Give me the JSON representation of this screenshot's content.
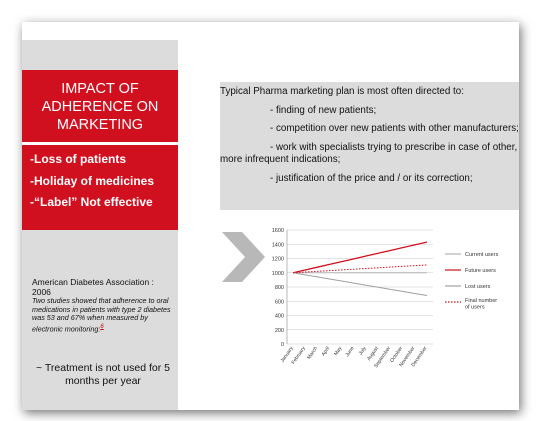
{
  "left_panel": {
    "title": "IMPACT OF ADHERENCE ON MARKETING",
    "bullets": [
      "-Loss of patients",
      "-Holiday of medicines",
      "-“Label” Not effective"
    ],
    "citation": {
      "source": "American Diabetes Association : 2006",
      "text": "Two studies showed that adherence to oral medications in patients with type 2 diabetes was 53 and 67% when measured by electronic monitoring:",
      "ref": "6"
    },
    "note": "~ Treatment is not used for 5 months per year"
  },
  "plan": {
    "intro": "Typical Pharma marketing plan is most often directed to:",
    "items": [
      "- finding of new patients;",
      "- competition over new patients with other manufacturers;",
      "- work with specialists trying to prescribe in case of other, more infrequent indications;",
      "- justification of the price and / or its correction;"
    ]
  },
  "chart_data": {
    "type": "line",
    "categories": [
      "January",
      "February",
      "March",
      "April",
      "May",
      "June",
      "July",
      "August",
      "September",
      "October",
      "November",
      "December"
    ],
    "series": [
      {
        "name": "Current users",
        "color": "#b0b0b0",
        "values": [
          1000,
          1000,
          1000,
          1000,
          1000,
          1000,
          1000,
          1000,
          1000,
          1000,
          1000,
          1000
        ]
      },
      {
        "name": "Future users",
        "color": "#d0101e",
        "values": [
          1000,
          1039,
          1078,
          1117,
          1156,
          1195,
          1235,
          1274,
          1313,
          1352,
          1391,
          1430
        ]
      },
      {
        "name": "Lost users",
        "color": "#a0a0a0",
        "values": [
          1000,
          971,
          942,
          913,
          884,
          855,
          825,
          796,
          767,
          738,
          709,
          680
        ]
      },
      {
        "name": "Final number of users",
        "color": "#d0101e",
        "dashed": true,
        "values": [
          1000,
          1010,
          1020,
          1030,
          1040,
          1050,
          1060,
          1070,
          1080,
          1090,
          1100,
          1110
        ]
      }
    ],
    "ylim": [
      0,
      1600
    ],
    "yticks": [
      0,
      200,
      400,
      600,
      800,
      1000,
      1200,
      1400,
      1600
    ],
    "grid": true
  }
}
